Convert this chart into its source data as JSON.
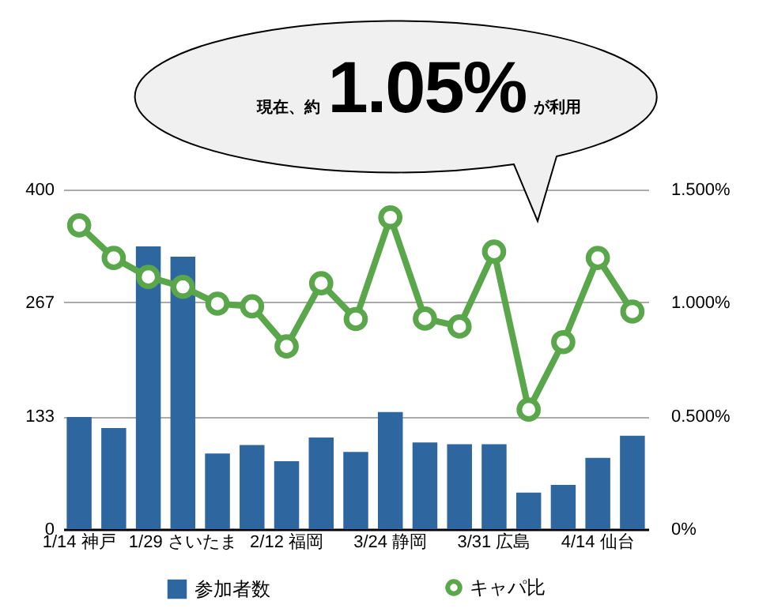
{
  "chart_data": {
    "type": "bar",
    "annotations": [
      "現在、約",
      "1.05%",
      "が利用"
    ],
    "categories": [
      "1/14 神戸",
      null,
      null,
      "1/29 さいたま",
      null,
      null,
      "2/12 福岡",
      null,
      null,
      "3/24 静岡",
      null,
      null,
      "3/31 広島",
      null,
      null,
      "4/14 仙台",
      null
    ],
    "series": [
      {
        "name": "参加者数",
        "color": "#2e67a0",
        "values": [
          132,
          119,
          333,
          321,
          89,
          99,
          80,
          108,
          91,
          138,
          102,
          100,
          100,
          43,
          52,
          84,
          110
        ]
      },
      {
        "name": "キャパ比",
        "type": "line",
        "axis": "y2",
        "color": "#5aa64a",
        "values": [
          1.342,
          1.198,
          1.114,
          1.07,
          0.996,
          0.984,
          0.807,
          1.086,
          0.928,
          1.377,
          0.93,
          0.895,
          1.226,
          0.528,
          0.826,
          1.198,
          0.961
        ]
      }
    ],
    "ylim": [
      0,
      400
    ],
    "yticks": [
      0,
      133,
      267,
      400
    ],
    "y2lim": [
      0,
      1.5
    ],
    "y2ticks": [
      {
        "value": 0,
        "label": "0%"
      },
      {
        "value": 0.5,
        "label": "0.500%"
      },
      {
        "value": 1,
        "label": "1.000%"
      },
      {
        "value": 1.5,
        "label": "1.500%"
      }
    ],
    "grid": "y",
    "legend": "bottom",
    "marker": "circle",
    "line_style": "solid"
  }
}
